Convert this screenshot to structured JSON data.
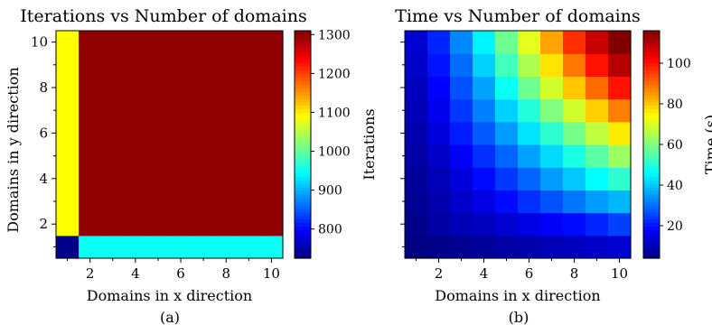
{
  "chart_data": [
    {
      "type": "heatmap",
      "title": "Iterations vs Number of domains",
      "xlabel": "Domains in x direction",
      "ylabel": "Domains in y direction",
      "caption": "(a)",
      "x": [
        1,
        2,
        3,
        4,
        5,
        6,
        7,
        8,
        9,
        10
      ],
      "y": [
        1,
        2,
        3,
        4,
        5,
        6,
        7,
        8,
        9,
        10
      ],
      "xticks": [
        "2",
        "4",
        "6",
        "8",
        "10"
      ],
      "yticks": [
        "2",
        "4",
        "6",
        "8",
        "10"
      ],
      "colorbar": {
        "label": "Iterations",
        "range": [
          725,
          1310
        ],
        "ticks": [
          "800",
          "900",
          "1000",
          "1100",
          "1200",
          "1300"
        ],
        "colormap": "jet"
      },
      "values": [
        [
          730,
          950,
          950,
          950,
          950,
          950,
          950,
          950,
          950,
          950
        ],
        [
          1090,
          1300,
          1300,
          1300,
          1300,
          1300,
          1300,
          1300,
          1300,
          1300
        ],
        [
          1090,
          1300,
          1300,
          1300,
          1300,
          1300,
          1300,
          1300,
          1300,
          1300
        ],
        [
          1090,
          1300,
          1300,
          1300,
          1300,
          1300,
          1300,
          1300,
          1300,
          1300
        ],
        [
          1090,
          1300,
          1300,
          1300,
          1300,
          1300,
          1300,
          1300,
          1300,
          1300
        ],
        [
          1090,
          1300,
          1300,
          1300,
          1300,
          1300,
          1300,
          1300,
          1300,
          1300
        ],
        [
          1090,
          1300,
          1300,
          1300,
          1300,
          1300,
          1300,
          1300,
          1300,
          1300
        ],
        [
          1090,
          1300,
          1300,
          1300,
          1300,
          1300,
          1300,
          1300,
          1300,
          1300
        ],
        [
          1090,
          1300,
          1300,
          1300,
          1300,
          1300,
          1300,
          1300,
          1300,
          1300
        ],
        [
          1090,
          1300,
          1300,
          1300,
          1300,
          1300,
          1300,
          1300,
          1300,
          1300
        ]
      ]
    },
    {
      "type": "heatmap",
      "title": "Time vs Number of domains",
      "xlabel": "Domains in x direction",
      "ylabel": "",
      "caption": "(b)",
      "x": [
        1,
        2,
        3,
        4,
        5,
        6,
        7,
        8,
        9,
        10
      ],
      "y": [
        1,
        2,
        3,
        4,
        5,
        6,
        7,
        8,
        9,
        10
      ],
      "xticks": [
        "2",
        "4",
        "6",
        "8",
        "10"
      ],
      "yticks": [],
      "colorbar": {
        "label": "Time (s)",
        "range": [
          4,
          116
        ],
        "ticks": [
          "20",
          "40",
          "60",
          "80",
          "100"
        ],
        "colormap": "jet"
      },
      "values": [
        [
          4,
          5,
          6,
          7,
          8,
          9,
          10,
          11,
          12,
          13
        ],
        [
          5,
          8,
          10,
          11,
          13,
          15,
          17,
          19,
          22,
          25
        ],
        [
          6,
          9,
          12,
          15,
          19,
          23,
          27,
          31,
          35,
          38
        ],
        [
          7,
          10,
          14,
          19,
          24,
          29,
          35,
          40,
          46,
          51
        ],
        [
          8,
          12,
          17,
          23,
          29,
          36,
          42,
          49,
          56,
          63
        ],
        [
          9,
          14,
          21,
          28,
          35,
          43,
          51,
          59,
          67,
          76
        ],
        [
          10,
          16,
          24,
          32,
          41,
          50,
          60,
          69,
          79,
          88
        ],
        [
          11,
          18,
          27,
          36,
          47,
          58,
          69,
          80,
          90,
          100
        ],
        [
          12,
          20,
          30,
          41,
          53,
          65,
          77,
          89,
          100,
          110
        ],
        [
          13,
          22,
          33,
          45,
          58,
          71,
          84,
          97,
          108,
          116
        ]
      ]
    }
  ]
}
